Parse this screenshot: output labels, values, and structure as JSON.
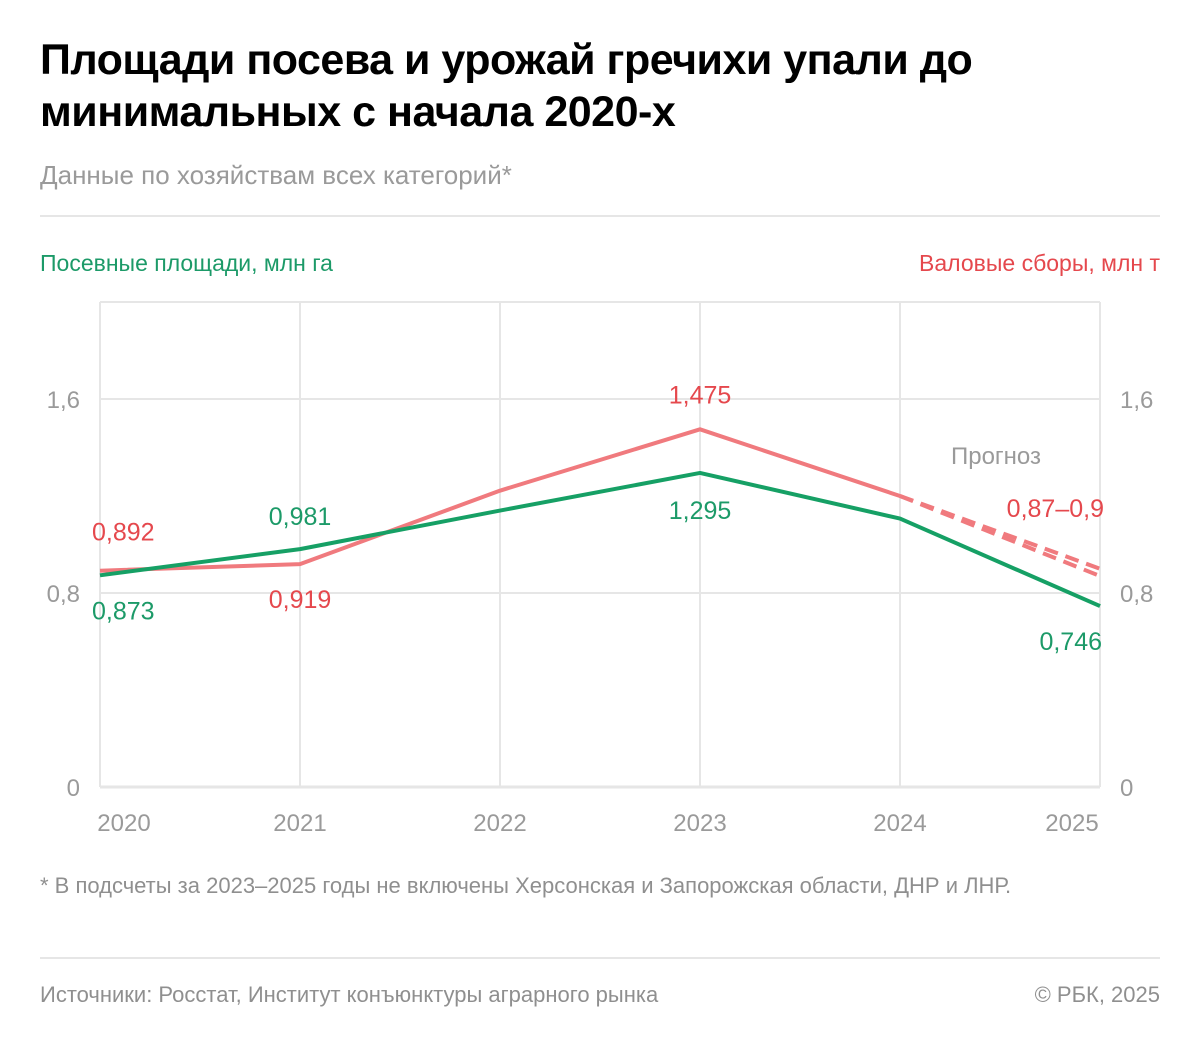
{
  "title": "Площади посева и урожай гречихи упали до минимальных с начала 2020-х",
  "subtitle": "Данные по хозяйствам всех категорий*",
  "footnote": "* В подсчеты за 2023–2025 годы не включены Херсонская и Запорожская области, ДНР и ЛНР.",
  "source": "Источники: Росстат, Институт конъюнктуры аграрного рынка",
  "copyright": "© РБК, 2025",
  "colors": {
    "area": "#16a065",
    "harvest": "#f07a7e",
    "area_label": "#1c9a68",
    "harvest_label": "#e5484d",
    "grid": "#e6e6e6",
    "tick": "#9a9a9a"
  },
  "chart_data": {
    "type": "line",
    "title": "Площади посева и урожай гречихи упали до минимальных с начала 2020-х",
    "subtitle": "Данные по хозяйствам всех категорий*",
    "x": [
      "2020",
      "2021",
      "2022",
      "2023",
      "2024",
      "2025"
    ],
    "ylim": [
      0,
      2.0
    ],
    "yticks": [
      0,
      0.8,
      1.6
    ],
    "ytick_labels": [
      "0",
      "0,8",
      "1,6"
    ],
    "ylabel_left": "Посевные площади, млн га",
    "ylabel_right": "Валовые сборы, млн т",
    "grid": true,
    "series": [
      {
        "name": "Посевные площади, млн га",
        "axis": "left",
        "values": [
          0.873,
          0.981,
          1.14,
          1.295,
          1.107,
          0.746
        ],
        "labels": [
          "0,873",
          "0,981",
          null,
          "1,295",
          null,
          "0,746"
        ],
        "style": "solid"
      },
      {
        "name": "Валовые сборы, млн т",
        "axis": "right",
        "values": [
          0.892,
          0.919,
          1.222,
          1.475,
          1.2,
          null
        ],
        "labels": [
          "0,892",
          "0,919",
          null,
          "1,475",
          null,
          null
        ],
        "style": "solid",
        "forecast": {
          "from": "2024",
          "to": "2025",
          "low": 0.87,
          "high": 0.9,
          "label": "0,87–0,9",
          "style": "dashed"
        }
      }
    ],
    "annotations": [
      {
        "text": "Прогноз",
        "x": "2024–2025"
      }
    ]
  }
}
